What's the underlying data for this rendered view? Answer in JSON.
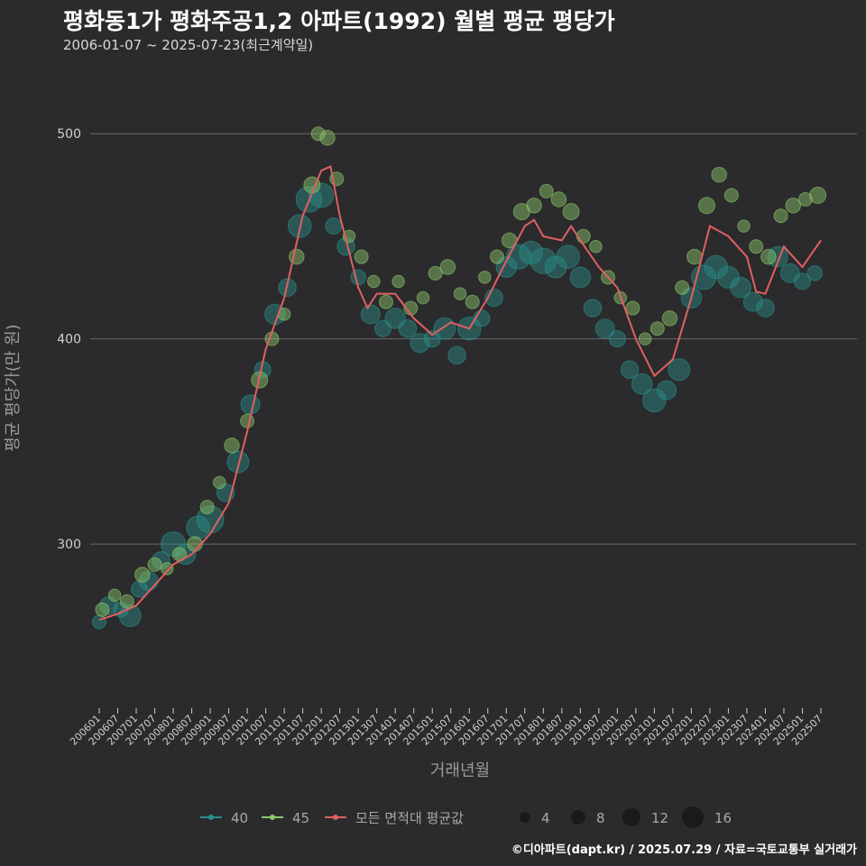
{
  "page": {
    "title": "평화동1가 평화주공1,2 아파트(1992) 월별 평균 평당가",
    "subtitle": "2006-01-07 ~ 2025-07-23(최근계약일)",
    "footer": "©디아파트(dapt.kr) / 2025.07.29 / 자료=국토교통부 실거래가"
  },
  "colors": {
    "background": "#2b2b2d",
    "grid": "#6a6a6a",
    "area40": "#2a8f8a",
    "area45": "#8fc86a",
    "average": "#e06060",
    "text": "#cfcfcf"
  },
  "chart_data": {
    "type": "scatter",
    "xlabel": "거래년월",
    "ylabel": "평균 평당가(만 원)",
    "ylim": [
      220,
      530
    ],
    "yticks": [
      300,
      400,
      500
    ],
    "xlim": [
      "2006-01",
      "2025-07"
    ],
    "xticks": [
      "200601",
      "200607",
      "200701",
      "200707",
      "200801",
      "200807",
      "200901",
      "200907",
      "201001",
      "201007",
      "201101",
      "201107",
      "201201",
      "201207",
      "201301",
      "201307",
      "201401",
      "201407",
      "201501",
      "201507",
      "201601",
      "201607",
      "201701",
      "201707",
      "201801",
      "201807",
      "201901",
      "201907",
      "202001",
      "202007",
      "202101",
      "202107",
      "202201",
      "202207",
      "202301",
      "202307",
      "202401",
      "202407",
      "202501",
      "202507"
    ],
    "grid": "horizontal",
    "legend": {
      "position": "bottom",
      "series_labels": [
        "40",
        "45",
        "모든 면적대 평균값"
      ],
      "size_labels": [
        "4",
        "8",
        "12",
        "16"
      ]
    },
    "average_line": {
      "name": "모든 면적대 평균값",
      "points": [
        [
          "2006-01",
          263
        ],
        [
          "2006-07",
          266
        ],
        [
          "2007-01",
          270
        ],
        [
          "2007-07",
          280
        ],
        [
          "2008-01",
          290
        ],
        [
          "2008-07",
          295
        ],
        [
          "2009-01",
          305
        ],
        [
          "2009-07",
          320
        ],
        [
          "2010-01",
          355
        ],
        [
          "2010-07",
          395
        ],
        [
          "2011-01",
          420
        ],
        [
          "2011-07",
          460
        ],
        [
          "2012-01",
          482
        ],
        [
          "2012-04",
          484
        ],
        [
          "2012-07",
          460
        ],
        [
          "2013-01",
          425
        ],
        [
          "2013-04",
          415
        ],
        [
          "2013-07",
          422
        ],
        [
          "2014-01",
          422
        ],
        [
          "2014-07",
          410
        ],
        [
          "2015-01",
          402
        ],
        [
          "2015-07",
          408
        ],
        [
          "2016-01",
          405
        ],
        [
          "2016-07",
          420
        ],
        [
          "2017-01",
          438
        ],
        [
          "2017-07",
          455
        ],
        [
          "2017-10",
          458
        ],
        [
          "2018-01",
          450
        ],
        [
          "2018-07",
          448
        ],
        [
          "2018-10",
          455
        ],
        [
          "2019-01",
          448
        ],
        [
          "2019-07",
          435
        ],
        [
          "2020-01",
          425
        ],
        [
          "2020-07",
          400
        ],
        [
          "2021-01",
          382
        ],
        [
          "2021-07",
          390
        ],
        [
          "2022-01",
          420
        ],
        [
          "2022-07",
          455
        ],
        [
          "2023-01",
          450
        ],
        [
          "2023-07",
          440
        ],
        [
          "2023-10",
          423
        ],
        [
          "2024-01",
          422
        ],
        [
          "2024-07",
          445
        ],
        [
          "2025-01",
          435
        ],
        [
          "2025-07",
          448
        ]
      ]
    },
    "series": [
      {
        "name": "40",
        "color": "#2a8f8a",
        "points": [
          [
            "2006-01",
            262,
            6
          ],
          [
            "2006-04",
            270,
            9
          ],
          [
            "2006-08",
            268,
            7
          ],
          [
            "2006-11",
            265,
            12
          ],
          [
            "2007-02",
            278,
            8
          ],
          [
            "2007-05",
            282,
            10
          ],
          [
            "2007-09",
            292,
            9
          ],
          [
            "2008-01",
            300,
            14
          ],
          [
            "2008-05",
            295,
            11
          ],
          [
            "2008-09",
            308,
            13
          ],
          [
            "2009-01",
            312,
            16
          ],
          [
            "2009-06",
            325,
            9
          ],
          [
            "2009-10",
            340,
            12
          ],
          [
            "2010-02",
            368,
            10
          ],
          [
            "2010-06",
            385,
            8
          ],
          [
            "2010-10",
            412,
            11
          ],
          [
            "2011-02",
            425,
            9
          ],
          [
            "2011-06",
            455,
            13
          ],
          [
            "2011-09",
            468,
            15
          ],
          [
            "2012-01",
            470,
            14
          ],
          [
            "2012-05",
            455,
            8
          ],
          [
            "2012-09",
            445,
            9
          ],
          [
            "2013-01",
            430,
            7
          ],
          [
            "2013-05",
            412,
            10
          ],
          [
            "2013-09",
            405,
            8
          ],
          [
            "2014-01",
            410,
            11
          ],
          [
            "2014-05",
            405,
            9
          ],
          [
            "2014-09",
            398,
            10
          ],
          [
            "2015-01",
            400,
            8
          ],
          [
            "2015-05",
            405,
            12
          ],
          [
            "2015-09",
            392,
            9
          ],
          [
            "2016-01",
            405,
            13
          ],
          [
            "2016-05",
            410,
            8
          ],
          [
            "2016-09",
            420,
            9
          ],
          [
            "2017-01",
            435,
            11
          ],
          [
            "2017-05",
            440,
            14
          ],
          [
            "2017-09",
            442,
            13
          ],
          [
            "2018-01",
            438,
            15
          ],
          [
            "2018-05",
            435,
            12
          ],
          [
            "2018-09",
            440,
            13
          ],
          [
            "2019-01",
            430,
            11
          ],
          [
            "2019-05",
            415,
            9
          ],
          [
            "2019-09",
            405,
            10
          ],
          [
            "2020-01",
            400,
            8
          ],
          [
            "2020-05",
            385,
            9
          ],
          [
            "2020-09",
            378,
            11
          ],
          [
            "2021-01",
            370,
            13
          ],
          [
            "2021-05",
            375,
            10
          ],
          [
            "2021-09",
            385,
            12
          ],
          [
            "2022-01",
            420,
            11
          ],
          [
            "2022-05",
            430,
            14
          ],
          [
            "2022-09",
            435,
            13
          ],
          [
            "2023-01",
            430,
            12
          ],
          [
            "2023-05",
            425,
            11
          ],
          [
            "2023-09",
            418,
            10
          ],
          [
            "2024-01",
            415,
            9
          ],
          [
            "2024-05",
            440,
            11
          ],
          [
            "2024-09",
            432,
            10
          ],
          [
            "2025-01",
            428,
            8
          ],
          [
            "2025-05",
            432,
            7
          ]
        ]
      },
      {
        "name": "45",
        "color": "#8fc86a",
        "points": [
          [
            "2006-02",
            268,
            6
          ],
          [
            "2006-06",
            275,
            5
          ],
          [
            "2006-10",
            272,
            6
          ],
          [
            "2007-03",
            285,
            7
          ],
          [
            "2007-07",
            290,
            6
          ],
          [
            "2007-11",
            288,
            5
          ],
          [
            "2008-03",
            295,
            6
          ],
          [
            "2008-08",
            300,
            7
          ],
          [
            "2008-12",
            318,
            6
          ],
          [
            "2009-04",
            330,
            5
          ],
          [
            "2009-08",
            348,
            7
          ],
          [
            "2010-01",
            360,
            6
          ],
          [
            "2010-05",
            380,
            8
          ],
          [
            "2010-09",
            400,
            6
          ],
          [
            "2011-01",
            412,
            5
          ],
          [
            "2011-05",
            440,
            7
          ],
          [
            "2011-10",
            475,
            8
          ],
          [
            "2011-12",
            500,
            6
          ],
          [
            "2012-03",
            498,
            7
          ],
          [
            "2012-06",
            478,
            6
          ],
          [
            "2012-10",
            450,
            5
          ],
          [
            "2013-02",
            440,
            6
          ],
          [
            "2013-06",
            428,
            5
          ],
          [
            "2013-10",
            418,
            6
          ],
          [
            "2014-02",
            428,
            5
          ],
          [
            "2014-06",
            415,
            6
          ],
          [
            "2014-10",
            420,
            5
          ],
          [
            "2015-02",
            432,
            6
          ],
          [
            "2015-06",
            435,
            7
          ],
          [
            "2015-10",
            422,
            5
          ],
          [
            "2016-02",
            418,
            6
          ],
          [
            "2016-06",
            430,
            5
          ],
          [
            "2016-10",
            440,
            6
          ],
          [
            "2017-02",
            448,
            7
          ],
          [
            "2017-06",
            462,
            8
          ],
          [
            "2017-10",
            465,
            7
          ],
          [
            "2018-02",
            472,
            6
          ],
          [
            "2018-06",
            468,
            7
          ],
          [
            "2018-10",
            462,
            8
          ],
          [
            "2019-02",
            450,
            6
          ],
          [
            "2019-06",
            445,
            5
          ],
          [
            "2019-10",
            430,
            6
          ],
          [
            "2020-02",
            420,
            5
          ],
          [
            "2020-06",
            415,
            6
          ],
          [
            "2020-10",
            400,
            5
          ],
          [
            "2021-02",
            405,
            6
          ],
          [
            "2021-06",
            410,
            7
          ],
          [
            "2021-10",
            425,
            6
          ],
          [
            "2022-02",
            440,
            7
          ],
          [
            "2022-06",
            465,
            8
          ],
          [
            "2022-10",
            480,
            7
          ],
          [
            "2023-02",
            470,
            6
          ],
          [
            "2023-06",
            455,
            5
          ],
          [
            "2023-10",
            445,
            6
          ],
          [
            "2024-02",
            440,
            7
          ],
          [
            "2024-06",
            460,
            6
          ],
          [
            "2024-10",
            465,
            7
          ],
          [
            "2025-02",
            468,
            6
          ],
          [
            "2025-06",
            470,
            8
          ]
        ]
      }
    ]
  }
}
